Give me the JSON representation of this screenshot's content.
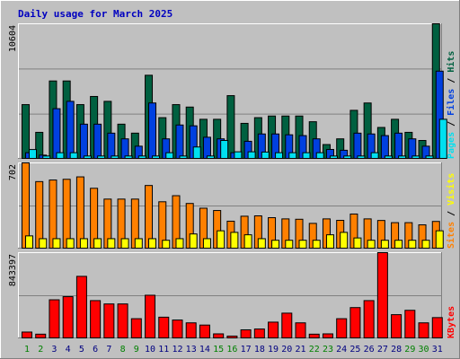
{
  "title": "Daily usage for March 2025",
  "colors": {
    "background": "#C0C0C0",
    "frame_light": "#FFFFFF",
    "frame_dark": "#808080",
    "title": "#0000C0",
    "hits": "#006040",
    "files": "#0040E0",
    "pages": "#00E0F0",
    "visits": "#FFFF00",
    "sites": "#FF8000",
    "kbytes": "#FF0000",
    "weekday_label": "#000080",
    "weekend_label": "#008000"
  },
  "chart_data": [
    {
      "type": "bar",
      "panel": "hits-files-pages",
      "max_label": "10604",
      "legend": [
        "Pages",
        "Files",
        "Hits"
      ],
      "categories": [
        "1",
        "2",
        "3",
        "4",
        "5",
        "6",
        "7",
        "8",
        "9",
        "10",
        "11",
        "12",
        "13",
        "14",
        "15",
        "16",
        "17",
        "18",
        "19",
        "20",
        "21",
        "22",
        "23",
        "24",
        "25",
        "26",
        "27",
        "28",
        "29",
        "30",
        "31"
      ],
      "series": [
        {
          "name": "Hits",
          "values": [
            4237,
            2054,
            6100,
            6100,
            4237,
            4880,
            4494,
            2697,
            1990,
            6550,
            3210,
            4237,
            4044,
            3082,
            3082,
            4944,
            2761,
            3210,
            3339,
            3339,
            3339,
            2889,
            1092,
            1541,
            3788,
            4365,
            2439,
            3082,
            2054,
            1413,
            10604
          ]
        },
        {
          "name": "Files",
          "values": [
            450,
            260,
            3917,
            4495,
            2697,
            2697,
            1990,
            1541,
            963,
            4366,
            1541,
            2632,
            2568,
            1668,
            1541,
            450,
            1348,
            1926,
            1926,
            1861,
            1797,
            1541,
            706,
            642,
            1990,
            1926,
            1797,
            1990,
            1541,
            963,
            6873
          ]
        },
        {
          "name": "Pages",
          "values": [
            700,
            190,
            450,
            450,
            190,
            190,
            190,
            190,
            190,
            190,
            450,
            190,
            900,
            190,
            1413,
            520,
            520,
            500,
            450,
            450,
            450,
            450,
            190,
            190,
            190,
            450,
            190,
            190,
            190,
            190,
            3082
          ]
        }
      ],
      "ylim": [
        0,
        10604
      ]
    },
    {
      "type": "bar",
      "panel": "sites-visits",
      "max_label": "702",
      "legend": [
        "Sites",
        "Visits"
      ],
      "categories": [
        "1",
        "2",
        "3",
        "4",
        "5",
        "6",
        "7",
        "8",
        "9",
        "10",
        "11",
        "12",
        "13",
        "14",
        "15",
        "16",
        "17",
        "18",
        "19",
        "20",
        "21",
        "22",
        "23",
        "24",
        "25",
        "26",
        "27",
        "28",
        "29",
        "30",
        "31"
      ],
      "series": [
        {
          "name": "Sites",
          "values": [
            702,
            548,
            561,
            567,
            587,
            493,
            404,
            404,
            404,
            516,
            382,
            432,
            368,
            329,
            310,
            222,
            263,
            266,
            251,
            241,
            238,
            204,
            241,
            229,
            281,
            241,
            228,
            210,
            210,
            192,
            220
          ]
        },
        {
          "name": "Visits",
          "values": [
            101,
            78,
            78,
            78,
            78,
            78,
            78,
            78,
            78,
            78,
            65,
            78,
            117,
            78,
            143,
            130,
            110,
            78,
            65,
            65,
            65,
            65,
            110,
            130,
            84,
            65,
            65,
            65,
            65,
            65,
            143
          ]
        }
      ],
      "ylim": [
        0,
        702
      ]
    },
    {
      "type": "bar",
      "panel": "kbytes",
      "max_label": "843397",
      "legend": [
        "KBytes"
      ],
      "categories": [
        "1",
        "2",
        "3",
        "4",
        "5",
        "6",
        "7",
        "8",
        "9",
        "10",
        "11",
        "12",
        "13",
        "14",
        "15",
        "16",
        "17",
        "18",
        "19",
        "20",
        "21",
        "22",
        "23",
        "24",
        "25",
        "26",
        "27",
        "28",
        "29",
        "30",
        "31"
      ],
      "series": [
        {
          "name": "KBytes",
          "values": [
            58000,
            37000,
            377000,
            408000,
            609000,
            369000,
            336000,
            336000,
            190000,
            422000,
            205000,
            177000,
            149000,
            127000,
            40000,
            18000,
            80000,
            88000,
            156000,
            245000,
            149000,
            37000,
            40000,
            190000,
            300000,
            369000,
            843397,
            230000,
            273000,
            149000,
            201000
          ]
        }
      ],
      "ylim": [
        0,
        843397
      ]
    }
  ],
  "day_labels": [
    "1",
    "2",
    "3",
    "4",
    "5",
    "6",
    "7",
    "8",
    "9",
    "10",
    "11",
    "12",
    "13",
    "14",
    "15",
    "16",
    "17",
    "18",
    "19",
    "20",
    "21",
    "22",
    "23",
    "24",
    "25",
    "26",
    "27",
    "28",
    "29",
    "30",
    "31"
  ],
  "weekend_days": [
    1,
    2,
    8,
    9,
    15,
    16,
    22,
    23,
    29,
    30
  ]
}
